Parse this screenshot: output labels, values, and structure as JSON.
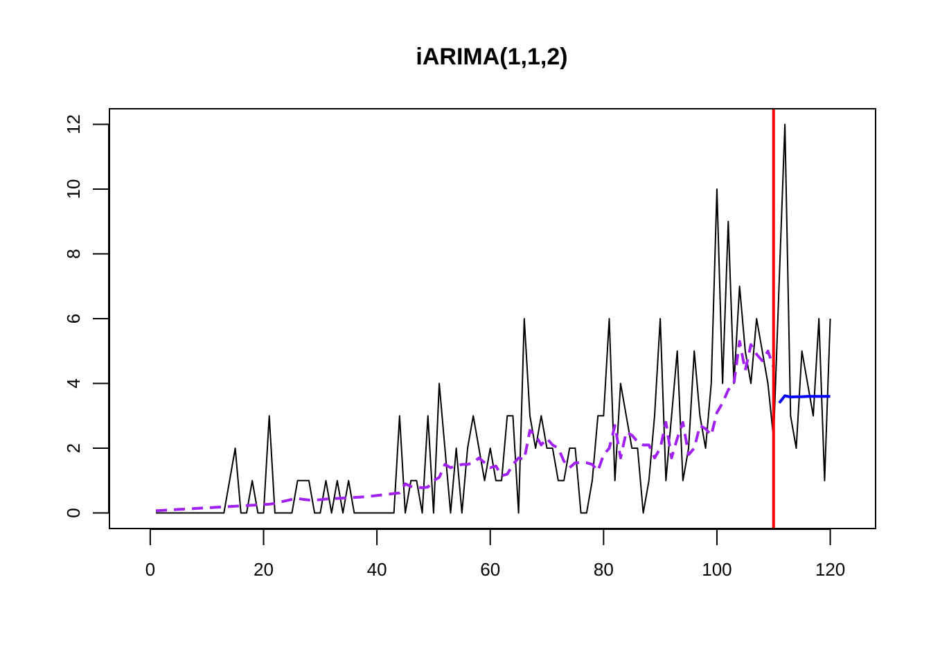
{
  "chart_data": {
    "type": "line",
    "title": "iARIMA(1,1,2)",
    "xlabel": "",
    "ylabel": "",
    "xlim": [
      -7.2,
      128
    ],
    "ylim": [
      -0.48,
      12.48
    ],
    "x_ticks": [
      0,
      20,
      40,
      60,
      80,
      100,
      120
    ],
    "y_ticks": [
      0,
      2,
      4,
      6,
      8,
      10,
      12
    ],
    "x_tick_labels": [
      "0",
      "20",
      "40",
      "60",
      "80",
      "100",
      "120"
    ],
    "y_tick_labels": [
      "0",
      "2",
      "4",
      "6",
      "8",
      "10",
      "12"
    ],
    "grid": false,
    "legend": "none",
    "series": [
      {
        "kind": "actuals",
        "color": "#000000",
        "style": "solid",
        "x_start": 1,
        "values": [
          0,
          0,
          0,
          0,
          0,
          0,
          0,
          0,
          0,
          0,
          0,
          0,
          0,
          1,
          2,
          0,
          0,
          1,
          0,
          0,
          3,
          0,
          0,
          0,
          0,
          1,
          1,
          1,
          0,
          0,
          1,
          0,
          1,
          0,
          1,
          0,
          0,
          0,
          0,
          0,
          0,
          0,
          0,
          3,
          0,
          1,
          1,
          0,
          3,
          0,
          4,
          2,
          0,
          2,
          0,
          2,
          3,
          2,
          1,
          2,
          1,
          1,
          3,
          3,
          0,
          6,
          3,
          2,
          3,
          2,
          2,
          1,
          1,
          2,
          2,
          0,
          0,
          1,
          3,
          3,
          6,
          1,
          4,
          3,
          2,
          2,
          0,
          1,
          3,
          6,
          1,
          3,
          5,
          1,
          2,
          5,
          3,
          2,
          4,
          10,
          4,
          9,
          4,
          7,
          5,
          4,
          6,
          5,
          4,
          2.3,
          7.2,
          12,
          3,
          2,
          5,
          4,
          3,
          6,
          1,
          6
        ]
      },
      {
        "kind": "fitted",
        "color": "#A020F0",
        "style": "dashed",
        "x_start": 1,
        "values": [
          0.07,
          0.08,
          0.09,
          0.1,
          0.11,
          0.12,
          0.13,
          0.14,
          0.15,
          0.16,
          0.17,
          0.18,
          0.19,
          0.2,
          0.21,
          0.22,
          0.23,
          0.24,
          0.25,
          0.26,
          0.27,
          0.3,
          0.34,
          0.38,
          0.42,
          0.45,
          0.42,
          0.4,
          0.4,
          0.41,
          0.43,
          0.44,
          0.45,
          0.46,
          0.47,
          0.48,
          0.49,
          0.5,
          0.52,
          0.54,
          0.56,
          0.58,
          0.6,
          0.62,
          0.9,
          0.82,
          0.8,
          0.78,
          0.8,
          1.0,
          1.1,
          1.5,
          1.4,
          1.45,
          1.5,
          1.5,
          1.55,
          1.7,
          1.55,
          1.4,
          1.45,
          1.15,
          1.2,
          1.5,
          1.7,
          1.65,
          2.55,
          2.4,
          2.1,
          2.3,
          2.1,
          2.0,
          1.6,
          1.4,
          1.55,
          1.55,
          1.55,
          1.5,
          1.3,
          1.8,
          2.0,
          2.7,
          1.7,
          2.5,
          2.4,
          2.2,
          2.1,
          2.1,
          1.7,
          2.0,
          2.8,
          1.7,
          2.3,
          2.8,
          1.8,
          2.0,
          2.7,
          2.6,
          2.4,
          3.1,
          3.4,
          3.8,
          4.0,
          5.3,
          4.4,
          5.2,
          4.9,
          4.7,
          5.0,
          4.5
        ]
      },
      {
        "kind": "forecast",
        "color": "#0000FF",
        "style": "solid",
        "x_start": 111,
        "values": [
          3.4,
          3.62,
          3.58,
          3.59,
          3.59,
          3.6,
          3.6,
          3.6,
          3.6,
          3.6
        ]
      }
    ],
    "vlines": [
      {
        "x": 110,
        "color": "#FF0000"
      }
    ]
  }
}
